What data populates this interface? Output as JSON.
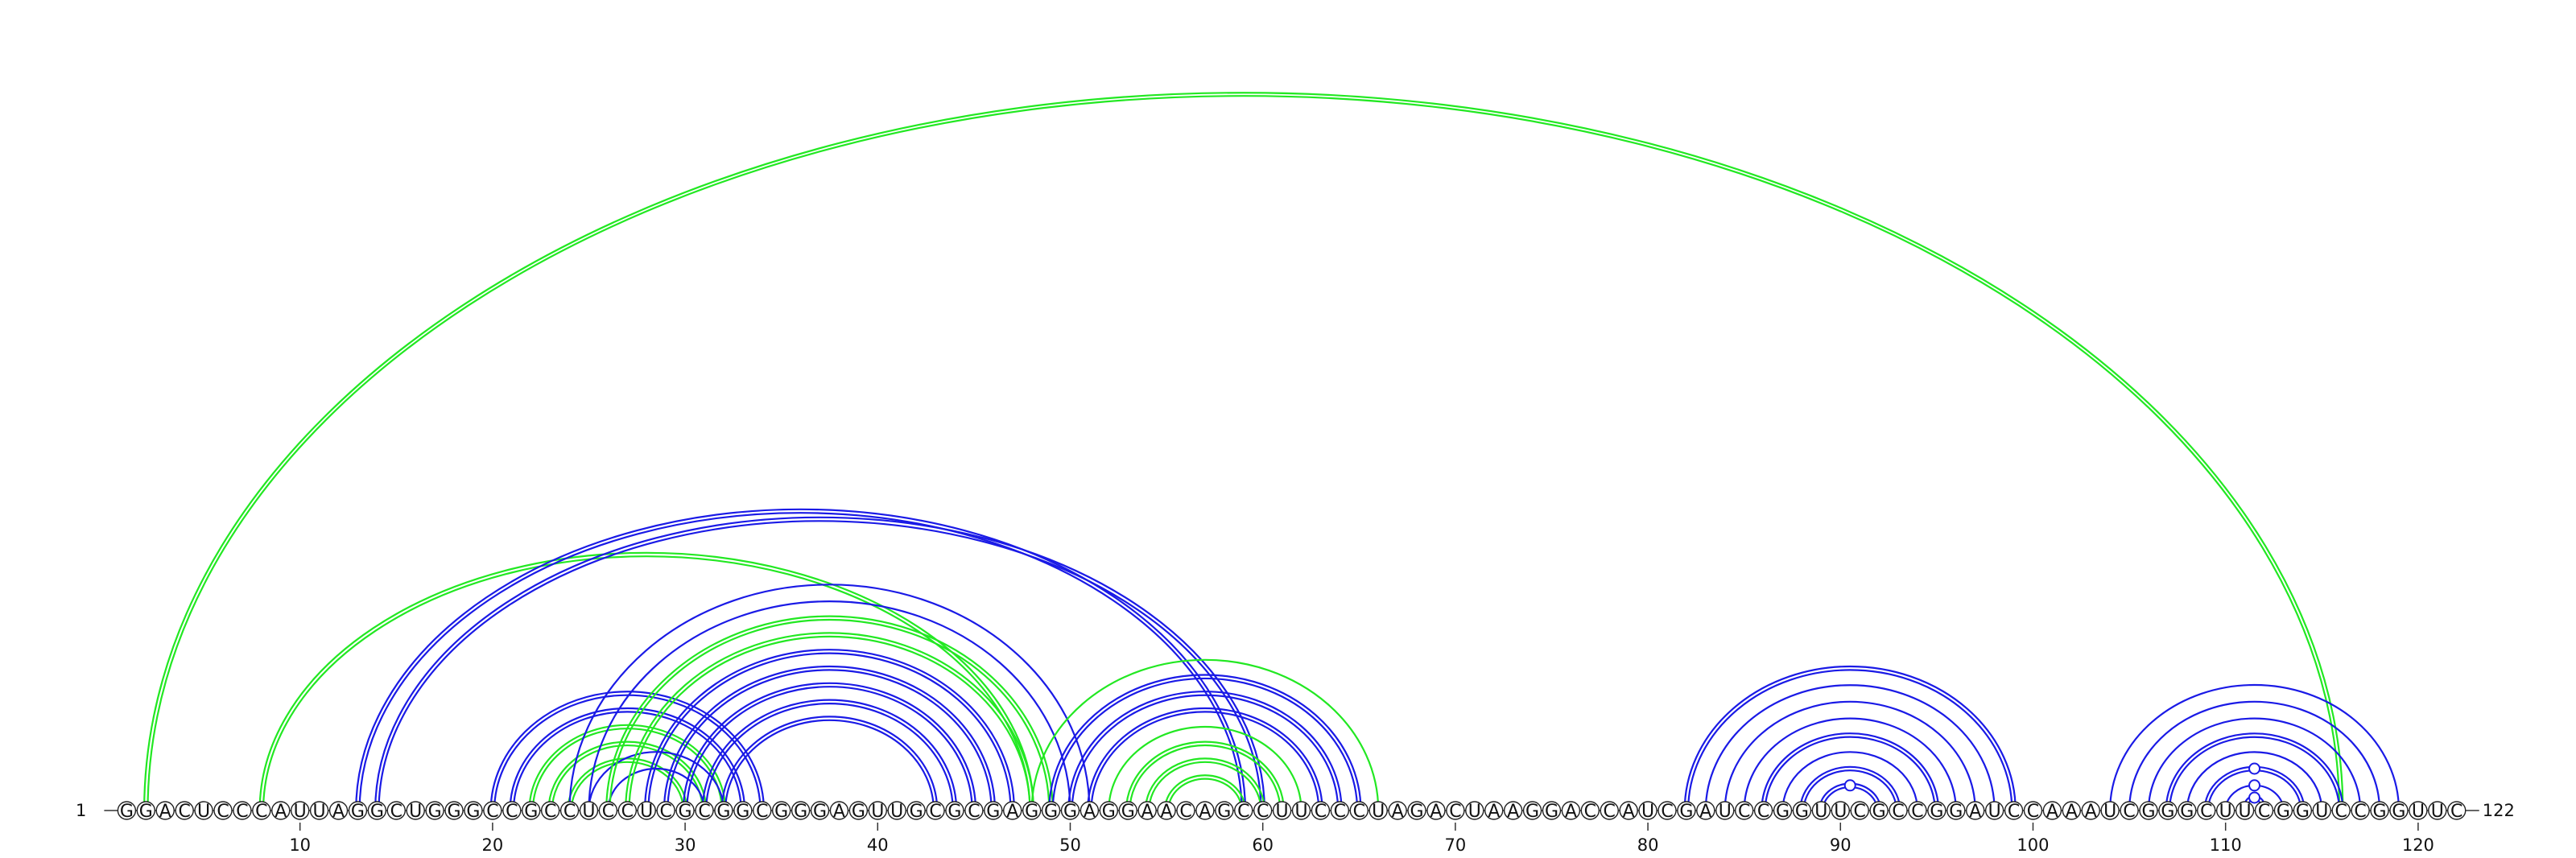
{
  "sequence": "GGACUCCCAUUAGGCUGGGCCGCCUCCUCGCGGCGGGAGUUGCGCGAGGGAGGAACAGCCUUCCCUAGACUAAGGACCAUCGAUCCGGUUCGCCGGAUCCAAAUCGGGCUUCGGUCCGGUUC",
  "start_label": "1",
  "end_label": "122",
  "ticks": [
    10,
    20,
    30,
    40,
    50,
    60,
    70,
    80,
    90,
    100,
    110,
    120
  ],
  "colors": {
    "blue": "#1a1ae6",
    "green": "#22e822",
    "circle_stroke": "#222222"
  },
  "arcs": [
    {
      "i": 2,
      "j": 116,
      "color": "green",
      "style": "double"
    },
    {
      "i": 8,
      "j": 48,
      "color": "green",
      "style": "double"
    },
    {
      "i": 13,
      "j": 59,
      "color": "blue",
      "style": "double"
    },
    {
      "i": 14,
      "j": 60,
      "color": "blue",
      "style": "double"
    },
    {
      "i": 20,
      "j": 34,
      "color": "blue",
      "style": "double"
    },
    {
      "i": 21,
      "j": 33,
      "color": "blue",
      "style": "double"
    },
    {
      "i": 22,
      "j": 32,
      "color": "green",
      "style": "double"
    },
    {
      "i": 23,
      "j": 31,
      "color": "green",
      "style": "double"
    },
    {
      "i": 24,
      "j": 30,
      "color": "green",
      "style": "double"
    },
    {
      "i": 25,
      "j": 32,
      "color": "blue",
      "style": "single"
    },
    {
      "i": 26,
      "j": 31,
      "color": "blue",
      "style": "single"
    },
    {
      "i": 24,
      "j": 51,
      "color": "blue",
      "style": "single"
    },
    {
      "i": 25,
      "j": 50,
      "color": "blue",
      "style": "single"
    },
    {
      "i": 26,
      "j": 49,
      "color": "green",
      "style": "double"
    },
    {
      "i": 27,
      "j": 48,
      "color": "green",
      "style": "double"
    },
    {
      "i": 28,
      "j": 47,
      "color": "blue",
      "style": "double"
    },
    {
      "i": 29,
      "j": 46,
      "color": "blue",
      "style": "double"
    },
    {
      "i": 30,
      "j": 45,
      "color": "blue",
      "style": "double"
    },
    {
      "i": 31,
      "j": 44,
      "color": "blue",
      "style": "double"
    },
    {
      "i": 32,
      "j": 43,
      "color": "blue",
      "style": "double"
    },
    {
      "i": 48,
      "j": 66,
      "color": "green",
      "style": "single"
    },
    {
      "i": 49,
      "j": 65,
      "color": "blue",
      "style": "double"
    },
    {
      "i": 50,
      "j": 64,
      "color": "blue",
      "style": "double"
    },
    {
      "i": 51,
      "j": 63,
      "color": "blue",
      "style": "double"
    },
    {
      "i": 52,
      "j": 62,
      "color": "green",
      "style": "single"
    },
    {
      "i": 53,
      "j": 61,
      "color": "green",
      "style": "double"
    },
    {
      "i": 54,
      "j": 60,
      "color": "green",
      "style": "double"
    },
    {
      "i": 55,
      "j": 59,
      "color": "green",
      "style": "double"
    },
    {
      "i": 82,
      "j": 99,
      "color": "blue",
      "style": "double"
    },
    {
      "i": 83,
      "j": 98,
      "color": "blue",
      "style": "single"
    },
    {
      "i": 84,
      "j": 97,
      "color": "blue",
      "style": "single"
    },
    {
      "i": 85,
      "j": 96,
      "color": "blue",
      "style": "single"
    },
    {
      "i": 86,
      "j": 95,
      "color": "blue",
      "style": "double"
    },
    {
      "i": 87,
      "j": 94,
      "color": "blue",
      "style": "single"
    },
    {
      "i": 88,
      "j": 93,
      "color": "blue",
      "style": "double"
    },
    {
      "i": 89,
      "j": 92,
      "color": "blue",
      "style": "double"
    },
    {
      "i": 104,
      "j": 119,
      "color": "blue",
      "style": "single"
    },
    {
      "i": 105,
      "j": 118,
      "color": "blue",
      "style": "single"
    },
    {
      "i": 106,
      "j": 117,
      "color": "blue",
      "style": "single"
    },
    {
      "i": 107,
      "j": 116,
      "color": "blue",
      "style": "double"
    },
    {
      "i": 108,
      "j": 115,
      "color": "blue",
      "style": "single"
    },
    {
      "i": 109,
      "j": 114,
      "color": "blue",
      "style": "double"
    },
    {
      "i": 110,
      "j": 113,
      "color": "blue",
      "style": "single"
    },
    {
      "i": 111,
      "j": 112,
      "color": "blue",
      "style": "double"
    }
  ],
  "arc_markers": [
    {
      "i": 89,
      "j": 92
    },
    {
      "i": 109,
      "j": 114
    },
    {
      "i": 110,
      "j": 113
    },
    {
      "i": 111,
      "j": 112
    }
  ]
}
